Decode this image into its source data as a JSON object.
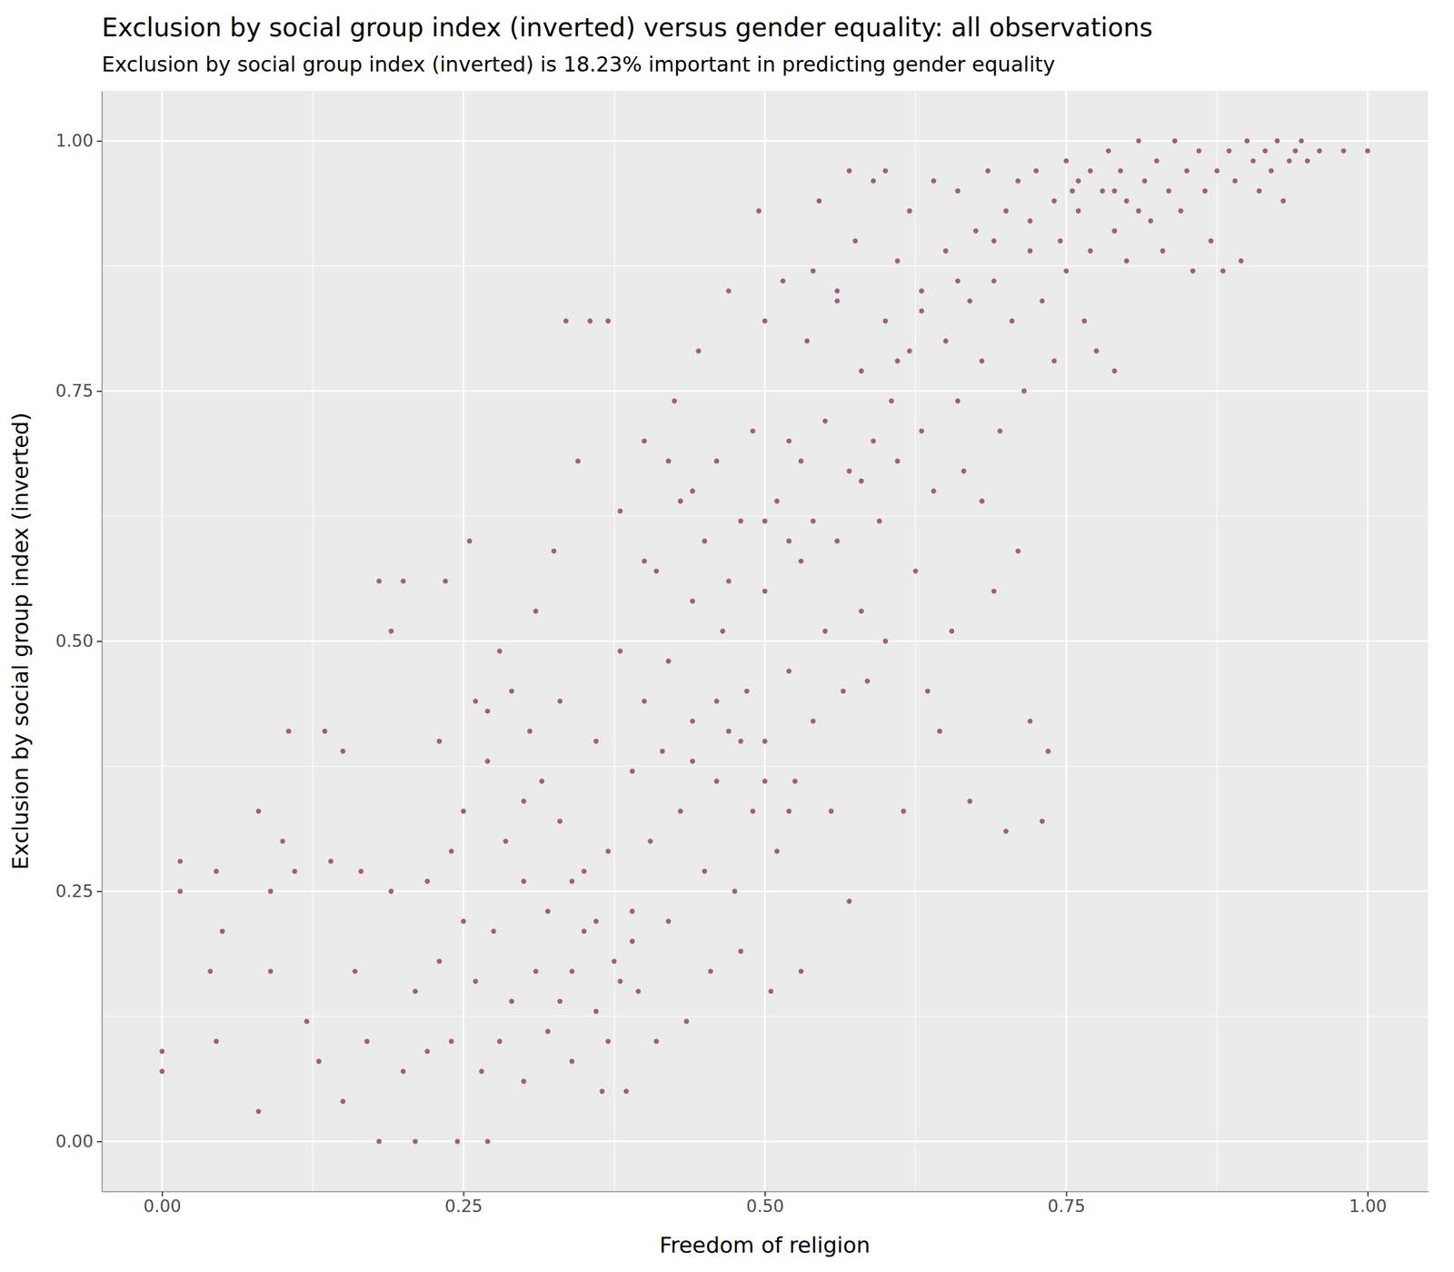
{
  "chart_data": {
    "type": "scatter",
    "title": "Exclusion by social group index (inverted) versus gender equality: all observations",
    "subtitle": "Exclusion by social group index (inverted) is 18.23% important in predicting gender equality",
    "x_label": "Freedom of religion",
    "y_label": "Exclusion by social group index (inverted)",
    "color": "#9e5f80",
    "marker": "circle",
    "grid": true,
    "xlim": [
      -0.05,
      1.05
    ],
    "ylim": [
      -0.05,
      1.05
    ],
    "xticks": [
      {
        "value": 0,
        "label": "0.00"
      },
      {
        "value": 0.25,
        "label": "0.25"
      },
      {
        "value": 0.5,
        "label": "0.50"
      },
      {
        "value": 0.75,
        "label": "0.75"
      },
      {
        "value": 1,
        "label": "1.00"
      }
    ],
    "yticks": [
      {
        "value": 0,
        "label": "0.00"
      },
      {
        "value": 0.25,
        "label": "0.25"
      },
      {
        "value": 0.5,
        "label": "0.50"
      },
      {
        "value": 0.75,
        "label": "0.75"
      },
      {
        "value": 1,
        "label": "1.00"
      }
    ],
    "x": [
      0.0,
      0.0,
      0.015,
      0.015,
      0.04,
      0.045,
      0.045,
      0.05,
      0.08,
      0.08,
      0.09,
      0.09,
      0.1,
      0.105,
      0.11,
      0.12,
      0.13,
      0.135,
      0.14,
      0.15,
      0.15,
      0.16,
      0.165,
      0.17,
      0.18,
      0.18,
      0.19,
      0.19,
      0.2,
      0.2,
      0.21,
      0.21,
      0.22,
      0.22,
      0.23,
      0.23,
      0.235,
      0.24,
      0.24,
      0.245,
      0.25,
      0.25,
      0.255,
      0.26,
      0.26,
      0.265,
      0.27,
      0.27,
      0.275,
      0.28,
      0.28,
      0.285,
      0.29,
      0.29,
      0.3,
      0.3,
      0.305,
      0.31,
      0.31,
      0.315,
      0.32,
      0.32,
      0.325,
      0.33,
      0.33,
      0.335,
      0.34,
      0.34,
      0.345,
      0.35,
      0.35,
      0.355,
      0.36,
      0.36,
      0.365,
      0.37,
      0.37,
      0.375,
      0.38,
      0.38,
      0.385,
      0.39,
      0.39,
      0.395,
      0.4,
      0.4,
      0.405,
      0.41,
      0.41,
      0.415,
      0.42,
      0.42,
      0.425,
      0.43,
      0.43,
      0.435,
      0.44,
      0.44,
      0.445,
      0.45,
      0.45,
      0.455,
      0.46,
      0.46,
      0.465,
      0.47,
      0.47,
      0.475,
      0.48,
      0.48,
      0.485,
      0.49,
      0.49,
      0.495,
      0.5,
      0.5,
      0.505,
      0.51,
      0.51,
      0.515,
      0.52,
      0.52,
      0.525,
      0.53,
      0.53,
      0.535,
      0.54,
      0.54,
      0.545,
      0.55,
      0.55,
      0.555,
      0.56,
      0.56,
      0.565,
      0.57,
      0.57,
      0.575,
      0.58,
      0.58,
      0.585,
      0.59,
      0.59,
      0.595,
      0.6,
      0.6,
      0.605,
      0.61,
      0.61,
      0.615,
      0.62,
      0.62,
      0.625,
      0.63,
      0.63,
      0.635,
      0.64,
      0.64,
      0.645,
      0.65,
      0.65,
      0.655,
      0.66,
      0.66,
      0.665,
      0.67,
      0.67,
      0.675,
      0.68,
      0.68,
      0.685,
      0.69,
      0.69,
      0.695,
      0.7,
      0.7,
      0.705,
      0.71,
      0.71,
      0.715,
      0.72,
      0.72,
      0.725,
      0.73,
      0.73,
      0.735,
      0.74,
      0.74,
      0.745,
      0.75,
      0.75,
      0.755,
      0.76,
      0.765,
      0.77,
      0.77,
      0.775,
      0.78,
      0.785,
      0.79,
      0.79,
      0.795,
      0.8,
      0.8,
      0.81,
      0.815,
      0.82,
      0.825,
      0.83,
      0.835,
      0.84,
      0.845,
      0.85,
      0.855,
      0.86,
      0.865,
      0.87,
      0.875,
      0.88,
      0.885,
      0.89,
      0.895,
      0.9,
      0.905,
      0.91,
      0.915,
      0.92,
      0.925,
      0.93,
      0.935,
      0.94,
      0.945,
      0.95,
      0.96,
      0.98,
      1.0,
      0.42,
      0.46,
      0.52,
      0.56,
      0.36,
      0.38,
      0.37,
      0.34,
      0.3,
      0.27,
      0.33,
      0.39,
      0.44,
      0.48,
      0.5,
      0.52,
      0.47,
      0.5,
      0.53,
      0.58,
      0.61,
      0.63,
      0.66,
      0.69,
      0.72,
      0.76,
      0.79,
      0.81,
      0.57,
      0.6,
      0.54,
      0.5,
      0.44,
      0.4
    ],
    "values": [
      0.07,
      0.09,
      0.25,
      0.28,
      0.17,
      0.27,
      0.1,
      0.21,
      0.03,
      0.33,
      0.17,
      0.25,
      0.3,
      0.41,
      0.27,
      0.12,
      0.08,
      0.41,
      0.28,
      0.04,
      0.39,
      0.17,
      0.27,
      0.1,
      0.0,
      0.56,
      0.51,
      0.25,
      0.07,
      0.56,
      0.15,
      0.0,
      0.26,
      0.09,
      0.4,
      0.18,
      0.56,
      0.29,
      0.1,
      0.0,
      0.22,
      0.33,
      0.6,
      0.44,
      0.16,
      0.07,
      0.0,
      0.38,
      0.21,
      0.49,
      0.1,
      0.3,
      0.14,
      0.45,
      0.26,
      0.06,
      0.41,
      0.17,
      0.53,
      0.36,
      0.23,
      0.11,
      0.59,
      0.44,
      0.32,
      0.82,
      0.17,
      0.08,
      0.68,
      0.27,
      0.21,
      0.82,
      0.13,
      0.4,
      0.05,
      0.82,
      0.29,
      0.18,
      0.63,
      0.49,
      0.05,
      0.23,
      0.37,
      0.15,
      0.44,
      0.7,
      0.3,
      0.1,
      0.57,
      0.39,
      0.22,
      0.48,
      0.74,
      0.64,
      0.33,
      0.12,
      0.54,
      0.42,
      0.79,
      0.27,
      0.6,
      0.17,
      0.36,
      0.68,
      0.51,
      0.85,
      0.41,
      0.25,
      0.62,
      0.19,
      0.45,
      0.71,
      0.33,
      0.93,
      0.55,
      0.4,
      0.15,
      0.64,
      0.29,
      0.86,
      0.47,
      0.7,
      0.36,
      0.58,
      0.17,
      0.8,
      0.42,
      0.62,
      0.94,
      0.51,
      0.72,
      0.33,
      0.84,
      0.6,
      0.45,
      0.67,
      0.24,
      0.9,
      0.53,
      0.77,
      0.46,
      0.7,
      0.96,
      0.62,
      0.82,
      0.5,
      0.74,
      0.88,
      0.68,
      0.33,
      0.93,
      0.79,
      0.57,
      0.85,
      0.71,
      0.45,
      0.96,
      0.65,
      0.41,
      0.8,
      0.89,
      0.51,
      0.74,
      0.95,
      0.67,
      0.84,
      0.34,
      0.91,
      0.78,
      0.64,
      0.97,
      0.86,
      0.55,
      0.71,
      0.93,
      0.31,
      0.82,
      0.96,
      0.59,
      0.75,
      0.89,
      0.42,
      0.97,
      0.32,
      0.84,
      0.39,
      0.94,
      0.78,
      0.9,
      0.98,
      0.87,
      0.95,
      0.93,
      0.82,
      0.97,
      0.89,
      0.79,
      0.95,
      0.99,
      0.91,
      0.77,
      0.97,
      0.94,
      0.88,
      1.0,
      0.96,
      0.92,
      0.98,
      0.89,
      0.95,
      1.0,
      0.93,
      0.97,
      0.87,
      0.99,
      0.95,
      0.9,
      0.97,
      0.87,
      0.99,
      0.96,
      0.88,
      1.0,
      0.98,
      0.95,
      0.99,
      0.97,
      1.0,
      0.94,
      0.98,
      0.99,
      1.0,
      0.98,
      0.99,
      0.99,
      0.99,
      0.68,
      0.44,
      0.6,
      0.85,
      0.22,
      0.16,
      0.1,
      0.26,
      0.34,
      0.43,
      0.14,
      0.2,
      0.38,
      0.4,
      0.36,
      0.33,
      0.56,
      0.62,
      0.68,
      0.66,
      0.78,
      0.83,
      0.86,
      0.9,
      0.92,
      0.96,
      0.95,
      0.93,
      0.97,
      0.97,
      0.87,
      0.82,
      0.65,
      0.58
    ]
  }
}
